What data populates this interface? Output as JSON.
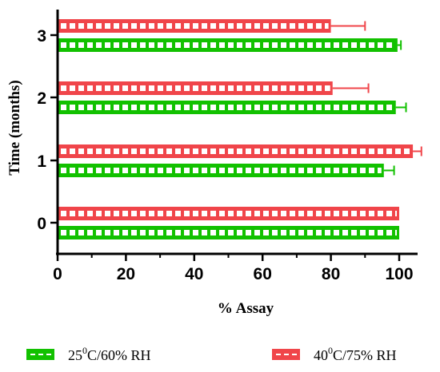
{
  "chart_data": {
    "type": "bar",
    "orientation": "horizontal",
    "categories": [
      "0",
      "1",
      "2",
      "3"
    ],
    "series": [
      {
        "name": "25⁰C/60% RH",
        "label_base": "25",
        "label_sup": "0",
        "label_rest": "C/60% RH",
        "color": "#12c100",
        "values": [
          100,
          95.5,
          99,
          99.5
        ],
        "errors": [
          0,
          3,
          3,
          1
        ]
      },
      {
        "name": "40⁰C/75% RH",
        "label_base": "40",
        "label_sup": "0",
        "label_rest": "C/75% RH",
        "color": "#f0454a",
        "values": [
          100,
          104,
          80.5,
          80
        ],
        "errors": [
          0,
          2.5,
          10.5,
          10
        ]
      }
    ],
    "xlabel": "% Assay",
    "ylabel": "Time (months)",
    "xlim": [
      0,
      110
    ],
    "xticks": [
      "0",
      "20",
      "40",
      "60",
      "80",
      "100"
    ],
    "grid": false,
    "legend_position": "bottom"
  }
}
